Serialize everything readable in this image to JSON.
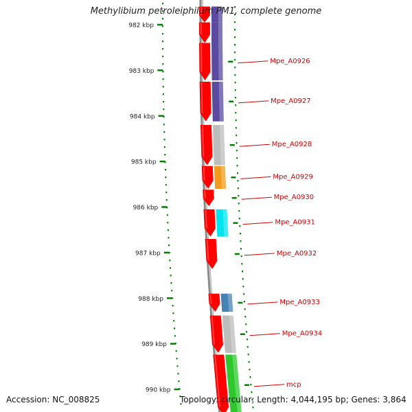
{
  "title": "Methylibium petroleiphilum PM1, complete genome",
  "footer": {
    "accession": "Accession: NC_008825",
    "topology": "Topology: circular; Length: 4,044,195 bp; Genes: 3,864"
  },
  "axis": {
    "start_kbp": 981.65,
    "end_kbp": 990.55,
    "ticks": [
      {
        "kbp": 982,
        "label": "982 kbp"
      },
      {
        "kbp": 983,
        "label": "983 kbp"
      },
      {
        "kbp": 984,
        "label": "984 kbp"
      },
      {
        "kbp": 985,
        "label": "985 kbp"
      },
      {
        "kbp": 986,
        "label": "986 kbp"
      },
      {
        "kbp": 987,
        "label": "987 kbp"
      },
      {
        "kbp": 988,
        "label": "988 kbp"
      },
      {
        "kbp": 989,
        "label": "989 kbp"
      },
      {
        "kbp": 990,
        "label": "990 kbp"
      }
    ]
  },
  "colors": {
    "gene": "#ff0000",
    "label": "#cc0000",
    "tick": "#008000",
    "tick_label": "#222222",
    "backbone": "#888888",
    "cog_purple": "#5a4aa0",
    "cog_grey": "#bdbdbd",
    "cog_orange": "#f29c1f",
    "cog_cyan": "#00e5ee",
    "cog_steelblue": "#4682b4",
    "cog_green": "#2ec82e"
  },
  "genes": [
    {
      "name": "",
      "start_kbp": 981.6,
      "end_kbp": 981.95,
      "cog_color": "cog_purple"
    },
    {
      "name": "",
      "start_kbp": 981.95,
      "end_kbp": 982.4,
      "cog_color": "cog_purple"
    },
    {
      "name": "Mpe_A0926",
      "start_kbp": 982.4,
      "end_kbp": 983.22,
      "cog_color": "cog_purple"
    },
    {
      "name": "Mpe_A0927",
      "start_kbp": 983.25,
      "end_kbp": 984.12,
      "cog_color": "cog_purple"
    },
    {
      "name": "Mpe_A0928",
      "start_kbp": 984.2,
      "end_kbp": 985.08,
      "cog_color": "cog_grey"
    },
    {
      "name": "Mpe_A0929",
      "start_kbp": 985.1,
      "end_kbp": 985.6,
      "cog_color": "cog_orange"
    },
    {
      "name": "Mpe_A0930",
      "start_kbp": 985.62,
      "end_kbp": 985.98,
      "cog_color": ""
    },
    {
      "name": "Mpe_A0931",
      "start_kbp": 986.05,
      "end_kbp": 986.65,
      "cog_color": "cog_cyan"
    },
    {
      "name": "Mpe_A0932",
      "start_kbp": 986.7,
      "end_kbp": 987.36,
      "cog_color": ""
    },
    {
      "name": "Mpe_A0933",
      "start_kbp": 987.9,
      "end_kbp": 988.3,
      "cog_color": "cog_steelblue"
    },
    {
      "name": "Mpe_A0934",
      "start_kbp": 988.38,
      "end_kbp": 989.2,
      "cog_color": "cog_grey"
    },
    {
      "name": "mcp",
      "start_kbp": 989.24,
      "end_kbp": 990.6,
      "cog_color": "cog_green"
    }
  ]
}
